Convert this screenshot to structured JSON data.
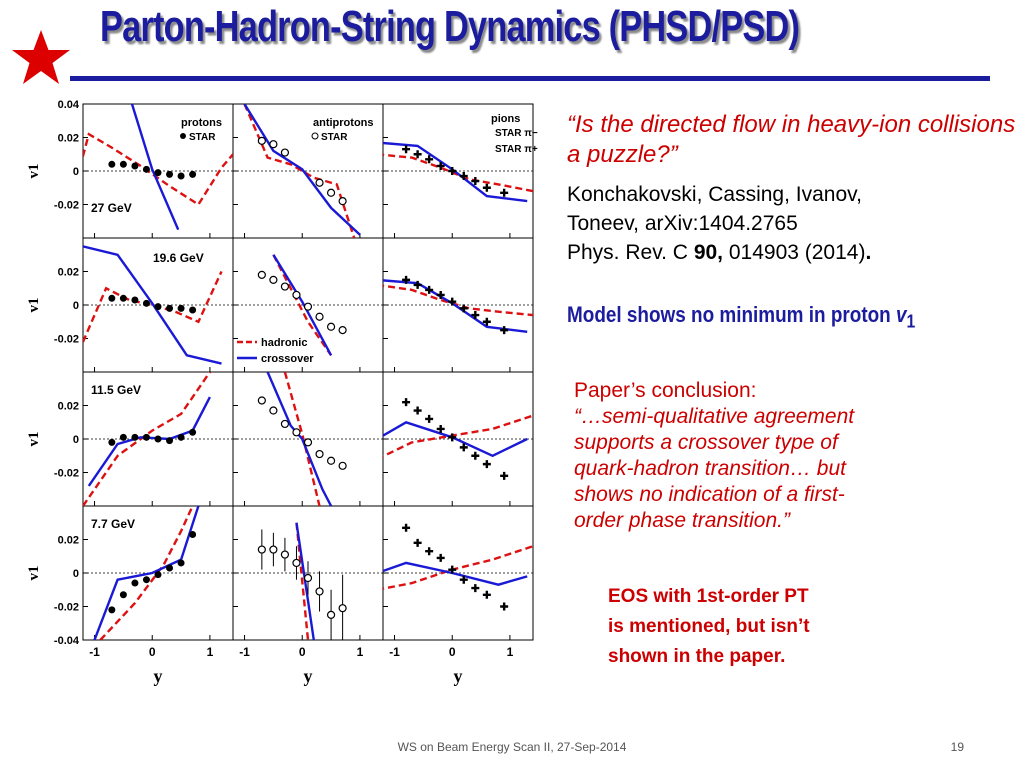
{
  "slide": {
    "title": "Parton-Hadron-String Dynamics (PHSD/PSD)",
    "question": "“Is the directed flow in heavy-ion collisions a puzzle?”",
    "authors_line1": "Konchakovski, Cassing, Ivanov,",
    "authors_line2": "Toneev, arXiv:1404.2765",
    "journal": "Phys. Rev. C ",
    "volume": "90,",
    "pages": " 014903 (2014)",
    "period": ".",
    "model_note": "Model shows no minimum in proton ",
    "model_note_var": "v",
    "model_note_sub": "1",
    "conclusion_head": "Paper’s conclusion:",
    "conclusion_lines": [
      "“…semi-qualitative agreement",
      "supports a crossover type of",
      "quark-hadron transition… but",
      "shows no indication of a first-",
      "order phase transition.”"
    ],
    "eos_lines": [
      "EOS with 1st-order PT",
      "is mentioned, but isn’t",
      "shown in the paper."
    ],
    "footer": "WS on Beam Energy Scan II, 27-Sep-2014",
    "page_number": "19",
    "colors": {
      "title": "#1c1c9e",
      "star": "#dd0000",
      "hadronic": "#dd1111",
      "crossover": "#1a1ad6",
      "accent": "#cc0000"
    }
  },
  "chart_data": {
    "type": "line",
    "xlabel": "y",
    "ylabel": "v1",
    "xlim": [
      -1.2,
      1.4
    ],
    "ylim": [
      -0.04,
      0.04
    ],
    "xticks": [
      "-1",
      "0",
      "1"
    ],
    "yticks": [
      "0.04",
      "0.02",
      "0",
      "-0.02",
      "-0.04"
    ],
    "columns": [
      "protons",
      "antiprotons",
      "pions"
    ],
    "rows": [
      "27 GeV",
      "19.6 GeV",
      "11.5 GeV",
      "7.7 GeV"
    ],
    "legend": {
      "protons": "protons",
      "protons_star": "STAR",
      "antiprotons": "antiprotons",
      "antiprotons_star": "STAR",
      "pions": "pions",
      "pi_minus": "STAR π−",
      "pi_plus": "STAR π+",
      "hadronic": "hadronic",
      "crossover": "crossover"
    },
    "panels": [
      {
        "row": 0,
        "col": 0,
        "label": "27 GeV",
        "hadronic": [
          [
            -1.3,
            -0.004
          ],
          [
            -1.1,
            0.022
          ],
          [
            -0.7,
            0.014
          ],
          [
            -0.2,
            0.003
          ],
          [
            0.3,
            -0.009
          ],
          [
            0.8,
            -0.02
          ],
          [
            1.2,
            0.002
          ],
          [
            1.4,
            0.01
          ]
        ],
        "crossover": [
          [
            -0.35,
            0.04
          ],
          [
            0,
            0.001
          ],
          [
            0.45,
            -0.035
          ]
        ],
        "points": [
          {
            "x": -0.7,
            "y": 0.004
          },
          {
            "x": -0.5,
            "y": 0.004
          },
          {
            "x": -0.3,
            "y": 0.003
          },
          {
            "x": -0.1,
            "y": 0.001
          },
          {
            "x": 0.1,
            "y": -0.001
          },
          {
            "x": 0.3,
            "y": -0.002
          },
          {
            "x": 0.5,
            "y": -0.003
          },
          {
            "x": 0.7,
            "y": -0.002
          }
        ]
      },
      {
        "row": 0,
        "col": 1,
        "label": "",
        "hadronic": [
          [
            -1,
            0.04
          ],
          [
            -0.6,
            0.008
          ],
          [
            -0.2,
            0.004
          ],
          [
            0.2,
            -0.004
          ],
          [
            0.6,
            -0.008
          ],
          [
            0.9,
            -0.04
          ]
        ],
        "crossover": [
          [
            -1,
            0.04
          ],
          [
            -0.5,
            0.012
          ],
          [
            0,
            0.001
          ],
          [
            0.5,
            -0.022
          ],
          [
            1,
            -0.038
          ]
        ],
        "points": [
          {
            "x": -0.7,
            "y": 0.018
          },
          {
            "x": -0.5,
            "y": 0.016
          },
          {
            "x": -0.3,
            "y": 0.011
          },
          {
            "x": 0.3,
            "y": -0.007
          },
          {
            "x": 0.5,
            "y": -0.013
          },
          {
            "x": 0.7,
            "y": -0.018
          }
        ]
      },
      {
        "row": 0,
        "col": 2,
        "label": "",
        "hadronic": [
          [
            -1.3,
            0.01
          ],
          [
            -0.7,
            0.008
          ],
          [
            -0.2,
            0.002
          ],
          [
            0.3,
            -0.005
          ],
          [
            0.8,
            -0.008
          ],
          [
            1.4,
            -0.012
          ]
        ],
        "crossover": [
          [
            -1.3,
            0.017
          ],
          [
            -0.6,
            0.015
          ],
          [
            0,
            0.001
          ],
          [
            0.6,
            -0.015
          ],
          [
            1.3,
            -0.018
          ]
        ],
        "points": [
          {
            "x": -0.8,
            "y": 0.013
          },
          {
            "x": -0.6,
            "y": 0.01
          },
          {
            "x": -0.4,
            "y": 0.007
          },
          {
            "x": -0.2,
            "y": 0.003
          },
          {
            "x": 0,
            "y": 0
          },
          {
            "x": 0.2,
            "y": -0.003
          },
          {
            "x": 0.4,
            "y": -0.006
          },
          {
            "x": 0.6,
            "y": -0.01
          },
          {
            "x": 0.9,
            "y": -0.013
          }
        ]
      },
      {
        "row": 1,
        "col": 0,
        "label": "19.6 GeV",
        "hadronic": [
          [
            -1.2,
            -0.022
          ],
          [
            -0.8,
            0.01
          ],
          [
            -0.4,
            0.003
          ],
          [
            0,
            0
          ],
          [
            0.4,
            -0.004
          ],
          [
            0.8,
            -0.01
          ],
          [
            1.2,
            0.02
          ]
        ],
        "crossover": [
          [
            -1.2,
            0.035
          ],
          [
            -0.6,
            0.03
          ],
          [
            0,
            0.001
          ],
          [
            0.6,
            -0.03
          ],
          [
            1.2,
            -0.035
          ]
        ],
        "points": [
          {
            "x": -0.7,
            "y": 0.004
          },
          {
            "x": -0.5,
            "y": 0.004
          },
          {
            "x": -0.3,
            "y": 0.003
          },
          {
            "x": -0.1,
            "y": 0.001
          },
          {
            "x": 0.1,
            "y": -0.001
          },
          {
            "x": 0.3,
            "y": -0.002
          },
          {
            "x": 0.5,
            "y": -0.002
          },
          {
            "x": 0.7,
            "y": -0.003
          }
        ]
      },
      {
        "row": 1,
        "col": 1,
        "label": "",
        "hadronic": [
          [
            -0.5,
            0.03
          ],
          [
            -0.2,
            0.01
          ],
          [
            0.1,
            -0.01
          ],
          [
            0.5,
            -0.03
          ]
        ],
        "crossover": [
          [
            -0.5,
            0.03
          ],
          [
            0,
            0.002
          ],
          [
            0.5,
            -0.03
          ]
        ],
        "points": [
          {
            "x": -0.7,
            "y": 0.018
          },
          {
            "x": -0.5,
            "y": 0.015
          },
          {
            "x": -0.3,
            "y": 0.011
          },
          {
            "x": -0.1,
            "y": 0.006
          },
          {
            "x": 0.1,
            "y": -0.001
          },
          {
            "x": 0.3,
            "y": -0.007
          },
          {
            "x": 0.5,
            "y": -0.013
          },
          {
            "x": 0.7,
            "y": -0.015
          }
        ]
      },
      {
        "row": 1,
        "col": 2,
        "label": "",
        "hadronic": [
          [
            -1.3,
            0.012
          ],
          [
            -0.7,
            0.009
          ],
          [
            -0.2,
            0.003
          ],
          [
            0.3,
            -0.002
          ],
          [
            0.8,
            -0.004
          ],
          [
            1.4,
            -0.006
          ]
        ],
        "crossover": [
          [
            -1.3,
            0.015
          ],
          [
            -0.6,
            0.013
          ],
          [
            0,
            0.001
          ],
          [
            0.6,
            -0.013
          ],
          [
            1.3,
            -0.016
          ]
        ],
        "points": [
          {
            "x": -0.8,
            "y": 0.015
          },
          {
            "x": -0.6,
            "y": 0.012
          },
          {
            "x": -0.4,
            "y": 0.009
          },
          {
            "x": -0.2,
            "y": 0.006
          },
          {
            "x": 0,
            "y": 0.002
          },
          {
            "x": 0.2,
            "y": -0.002
          },
          {
            "x": 0.4,
            "y": -0.006
          },
          {
            "x": 0.6,
            "y": -0.01
          },
          {
            "x": 0.9,
            "y": -0.015
          }
        ]
      },
      {
        "row": 2,
        "col": 0,
        "label": "11.5 GeV",
        "hadronic": [
          [
            -1.2,
            -0.04
          ],
          [
            -0.6,
            -0.01
          ],
          [
            0,
            0.005
          ],
          [
            0.5,
            0.015
          ],
          [
            1,
            0.04
          ]
        ],
        "crossover": [
          [
            -1.1,
            -0.028
          ],
          [
            -0.6,
            -0.003
          ],
          [
            -0.2,
            0.001
          ],
          [
            0.3,
            0
          ],
          [
            0.7,
            0.005
          ],
          [
            1,
            0.025
          ]
        ],
        "points": [
          {
            "x": -0.7,
            "y": -0.002
          },
          {
            "x": -0.5,
            "y": 0.001
          },
          {
            "x": -0.3,
            "y": 0.001
          },
          {
            "x": -0.1,
            "y": 0.001
          },
          {
            "x": 0.1,
            "y": 0
          },
          {
            "x": 0.3,
            "y": -0.001
          },
          {
            "x": 0.5,
            "y": 0.001
          },
          {
            "x": 0.7,
            "y": 0.004
          }
        ]
      },
      {
        "row": 2,
        "col": 1,
        "label": "",
        "hadronic": [
          [
            -0.3,
            0.04
          ],
          [
            0,
            0.003
          ],
          [
            0.3,
            -0.04
          ]
        ],
        "crossover": [
          [
            -0.6,
            0.04
          ],
          [
            -0.2,
            0.008
          ],
          [
            0,
            0
          ],
          [
            0.35,
            -0.03
          ],
          [
            0.5,
            -0.04
          ]
        ],
        "points": [
          {
            "x": -0.7,
            "y": 0.023
          },
          {
            "x": -0.5,
            "y": 0.017
          },
          {
            "x": -0.3,
            "y": 0.009
          },
          {
            "x": -0.1,
            "y": 0.004
          },
          {
            "x": 0.1,
            "y": -0.002
          },
          {
            "x": 0.3,
            "y": -0.009
          },
          {
            "x": 0.5,
            "y": -0.013
          },
          {
            "x": 0.7,
            "y": -0.016
          }
        ]
      },
      {
        "row": 2,
        "col": 2,
        "label": "",
        "hadronic": [
          [
            -1.3,
            -0.012
          ],
          [
            -0.7,
            -0.002
          ],
          [
            0,
            0.002
          ],
          [
            0.7,
            0.006
          ],
          [
            1.4,
            0.014
          ]
        ],
        "crossover": [
          [
            -1.3,
            0
          ],
          [
            -0.8,
            0.01
          ],
          [
            0,
            0.001
          ],
          [
            0.7,
            -0.01
          ],
          [
            1.3,
            0
          ]
        ],
        "points": [
          {
            "x": -0.8,
            "y": 0.022
          },
          {
            "x": -0.6,
            "y": 0.017
          },
          {
            "x": -0.4,
            "y": 0.012
          },
          {
            "x": -0.2,
            "y": 0.006
          },
          {
            "x": 0,
            "y": 0.001
          },
          {
            "x": 0.2,
            "y": -0.005
          },
          {
            "x": 0.4,
            "y": -0.01
          },
          {
            "x": 0.6,
            "y": -0.015
          },
          {
            "x": 0.9,
            "y": -0.022
          }
        ]
      },
      {
        "row": 3,
        "col": 0,
        "label": "7.7 GeV",
        "hadronic": [
          [
            -0.9,
            -0.04
          ],
          [
            -0.3,
            -0.018
          ],
          [
            0.2,
            0.005
          ],
          [
            0.5,
            0.025
          ],
          [
            0.7,
            0.04
          ]
        ],
        "crossover": [
          [
            -1,
            -0.04
          ],
          [
            -0.6,
            -0.004
          ],
          [
            0,
            0
          ],
          [
            0.5,
            0.008
          ],
          [
            0.8,
            0.04
          ]
        ],
        "points": [
          {
            "x": -0.7,
            "y": -0.022
          },
          {
            "x": -0.5,
            "y": -0.013
          },
          {
            "x": -0.3,
            "y": -0.006
          },
          {
            "x": -0.1,
            "y": -0.004
          },
          {
            "x": 0.1,
            "y": -0.001
          },
          {
            "x": 0.3,
            "y": 0.003
          },
          {
            "x": 0.5,
            "y": 0.006
          },
          {
            "x": 0.7,
            "y": 0.023
          }
        ]
      },
      {
        "row": 3,
        "col": 1,
        "label": "",
        "hadronic": [
          [
            -0.1,
            0.03
          ],
          [
            0.1,
            -0.04
          ]
        ],
        "crossover": [
          [
            -0.1,
            0.03
          ],
          [
            0.2,
            -0.04
          ]
        ],
        "points": [
          {
            "x": -0.7,
            "y": 0.014,
            "err": 0.012
          },
          {
            "x": -0.5,
            "y": 0.014,
            "err": 0.01
          },
          {
            "x": -0.3,
            "y": 0.011,
            "err": 0.01
          },
          {
            "x": -0.1,
            "y": 0.006,
            "err": 0.01
          },
          {
            "x": 0.1,
            "y": -0.003,
            "err": 0.01
          },
          {
            "x": 0.3,
            "y": -0.011,
            "err": 0.012
          },
          {
            "x": 0.5,
            "y": -0.025,
            "err": 0.015
          },
          {
            "x": 0.7,
            "y": -0.021,
            "err": 0.02
          }
        ]
      },
      {
        "row": 3,
        "col": 2,
        "label": "",
        "hadronic": [
          [
            -1.3,
            -0.01
          ],
          [
            -0.7,
            -0.006
          ],
          [
            0,
            0.002
          ],
          [
            0.7,
            0.008
          ],
          [
            1.4,
            0.016
          ]
        ],
        "crossover": [
          [
            -1.3,
            0
          ],
          [
            -0.8,
            0.006
          ],
          [
            0,
            0
          ],
          [
            0.8,
            -0.007
          ],
          [
            1.3,
            -0.002
          ]
        ],
        "points": [
          {
            "x": -0.8,
            "y": 0.027
          },
          {
            "x": -0.6,
            "y": 0.018
          },
          {
            "x": -0.4,
            "y": 0.013
          },
          {
            "x": -0.2,
            "y": 0.009
          },
          {
            "x": 0,
            "y": 0.002
          },
          {
            "x": 0.2,
            "y": -0.004
          },
          {
            "x": 0.4,
            "y": -0.009
          },
          {
            "x": 0.6,
            "y": -0.013
          },
          {
            "x": 0.9,
            "y": -0.02
          }
        ]
      }
    ]
  }
}
